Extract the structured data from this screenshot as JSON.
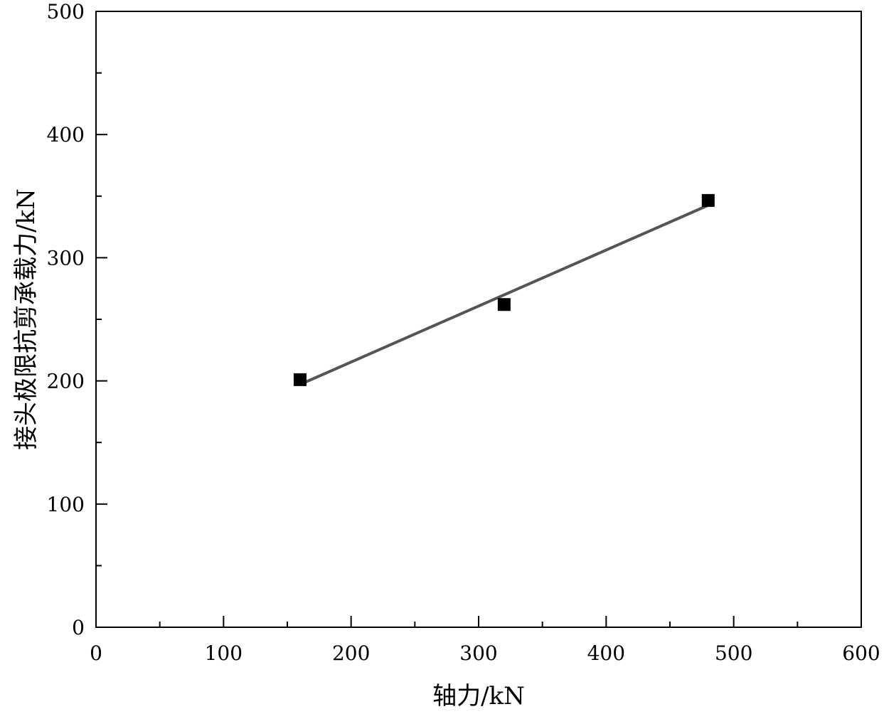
{
  "chart_data": {
    "type": "scatter",
    "title": "",
    "xlabel": "轴力/kN",
    "ylabel": "接头极限抗剪承载力/kN",
    "xlim": [
      0,
      600
    ],
    "ylim": [
      0,
      500
    ],
    "xticks": [
      "0",
      "100",
      "200",
      "300",
      "400",
      "500",
      "600"
    ],
    "yticks": [
      "0",
      "100",
      "200",
      "300",
      "400",
      "500"
    ],
    "grid": false,
    "legend": "none",
    "series": [
      {
        "marker": "square",
        "color": "#000000",
        "x": [
          160,
          320,
          480
        ],
        "y": [
          201,
          262,
          346.5
        ]
      }
    ],
    "fit_line": {
      "color": "#555555",
      "x": [
        160,
        480
      ],
      "y": [
        197.1,
        342.6
      ]
    }
  }
}
